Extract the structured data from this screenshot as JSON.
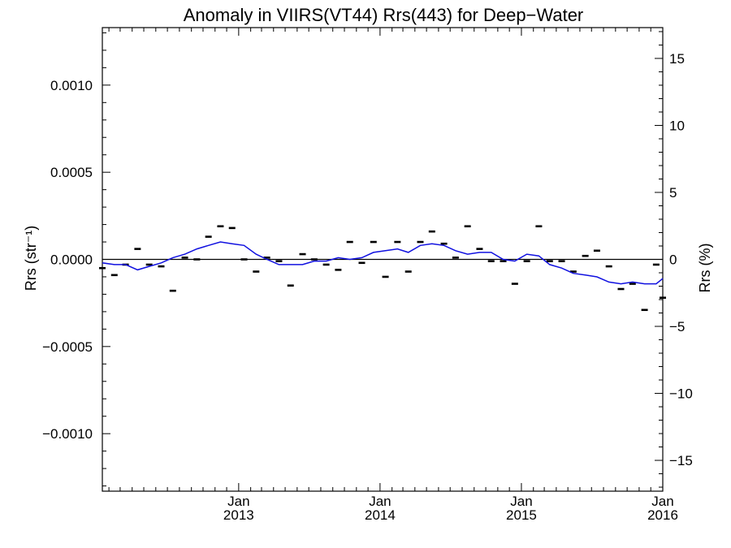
{
  "chart_data": {
    "type": "line",
    "title": "Anomaly in VIIRS(VT44) Rrs(443) for Deep−Water",
    "ylabel": "Rrs (str⁻¹)",
    "ylabel_right": "Rrs (%)",
    "xlabel": "",
    "xlim": [
      "2012-01-15",
      "2016-01-01"
    ],
    "ylim": [
      -0.00133,
      0.00133
    ],
    "ylim_right": [
      -17.3,
      17.3
    ],
    "y_ticks": [
      {
        "value": 0.001,
        "label": "0.0010"
      },
      {
        "value": 0.0005,
        "label": "0.0005"
      },
      {
        "value": 0.0,
        "label": "0.0000"
      },
      {
        "value": -0.0005,
        "label": "−0.0005"
      },
      {
        "value": -0.001,
        "label": "−0.0010"
      }
    ],
    "y_right_ticks": [
      {
        "value": 15,
        "label": "15"
      },
      {
        "value": 10,
        "label": "10"
      },
      {
        "value": 5,
        "label": "5"
      },
      {
        "value": 0,
        "label": "0"
      },
      {
        "value": -5,
        "label": "−5"
      },
      {
        "value": -10,
        "label": "−10"
      },
      {
        "value": -15,
        "label": "−15"
      }
    ],
    "x_ticks": [
      {
        "date": "2013-01-01",
        "month": "Jan",
        "year": "2013"
      },
      {
        "date": "2014-01-01",
        "month": "Jan",
        "year": "2014"
      },
      {
        "date": "2015-01-01",
        "month": "Jan",
        "year": "2015"
      },
      {
        "date": "2016-01-01",
        "month": "Jan",
        "year": "2016"
      }
    ],
    "grid": false,
    "zero_line": true,
    "colors": {
      "running_mean": "#1010e0",
      "points": "#000000",
      "axes": "#000000"
    },
    "series": [
      {
        "kind": "points",
        "x": [
          "2012-01-15",
          "2012-02-15",
          "2012-03-15",
          "2012-04-15",
          "2012-05-15",
          "2012-06-15",
          "2012-07-15",
          "2012-08-15",
          "2012-09-15",
          "2012-10-15",
          "2012-11-15",
          "2012-12-15",
          "2013-01-15",
          "2013-02-15",
          "2013-03-15",
          "2013-04-15",
          "2013-05-15",
          "2013-06-15",
          "2013-07-15",
          "2013-08-15",
          "2013-09-15",
          "2013-10-15",
          "2013-11-15",
          "2013-12-15",
          "2014-01-15",
          "2014-02-15",
          "2014-03-15",
          "2014-04-15",
          "2014-05-15",
          "2014-06-15",
          "2014-07-15",
          "2014-08-15",
          "2014-09-15",
          "2014-10-15",
          "2014-11-15",
          "2014-12-15",
          "2015-01-15",
          "2015-02-15",
          "2015-03-15",
          "2015-04-15",
          "2015-05-15",
          "2015-06-15",
          "2015-07-15",
          "2015-08-15",
          "2015-09-15",
          "2015-10-15",
          "2015-11-15",
          "2015-12-15",
          "2016-01-01"
        ],
        "values": [
          -5e-05,
          -9e-05,
          -3e-05,
          6e-05,
          -3e-05,
          -4e-05,
          -0.00018,
          1e-05,
          0.0,
          0.00013,
          0.00019,
          0.00018,
          0.0,
          -7e-05,
          1e-05,
          -1e-05,
          -0.00015,
          3e-05,
          0.0,
          -3e-05,
          -6e-05,
          0.0001,
          -2e-05,
          0.0001,
          -0.0001,
          0.0001,
          -7e-05,
          0.0001,
          0.00016,
          9e-05,
          1e-05,
          0.00019,
          6e-05,
          -1e-05,
          -1e-05,
          -0.00014,
          -1e-05,
          0.00019,
          -1e-05,
          -1e-05,
          -7e-05,
          2e-05,
          5e-05,
          -4e-05,
          -0.00017,
          -0.00014,
          -0.00029,
          -3e-05,
          -0.00022
        ]
      },
      {
        "kind": "running-mean",
        "x": [
          "2012-01-15",
          "2012-02-15",
          "2012-03-15",
          "2012-04-15",
          "2012-05-15",
          "2012-06-15",
          "2012-07-15",
          "2012-08-15",
          "2012-09-15",
          "2012-10-15",
          "2012-11-15",
          "2012-12-15",
          "2013-01-15",
          "2013-02-15",
          "2013-03-15",
          "2013-04-15",
          "2013-05-15",
          "2013-06-15",
          "2013-07-15",
          "2013-08-15",
          "2013-09-15",
          "2013-10-15",
          "2013-11-15",
          "2013-12-15",
          "2014-01-15",
          "2014-02-15",
          "2014-03-15",
          "2014-04-15",
          "2014-05-15",
          "2014-06-15",
          "2014-07-15",
          "2014-08-15",
          "2014-09-15",
          "2014-10-15",
          "2014-11-15",
          "2014-12-15",
          "2015-01-15",
          "2015-02-15",
          "2015-03-15",
          "2015-04-15",
          "2015-05-15",
          "2015-06-15",
          "2015-07-15",
          "2015-08-15",
          "2015-09-15",
          "2015-10-15",
          "2015-11-15",
          "2015-12-15",
          "2016-01-01"
        ],
        "values": [
          -2e-05,
          -3e-05,
          -3e-05,
          -6e-05,
          -4e-05,
          -2e-05,
          1e-05,
          3e-05,
          6e-05,
          8e-05,
          0.0001,
          9e-05,
          8e-05,
          3e-05,
          0.0,
          -3e-05,
          -3e-05,
          -3e-05,
          -1e-05,
          -1e-05,
          1e-05,
          0.0,
          1e-05,
          4e-05,
          5e-05,
          6e-05,
          4e-05,
          8e-05,
          9e-05,
          8e-05,
          5e-05,
          3e-05,
          4e-05,
          4e-05,
          0.0,
          -1e-05,
          3e-05,
          2e-05,
          -3e-05,
          -5e-05,
          -8e-05,
          -9e-05,
          -0.0001,
          -0.00013,
          -0.00014,
          -0.00013,
          -0.00014,
          -0.00014,
          -0.00011
        ]
      }
    ]
  }
}
